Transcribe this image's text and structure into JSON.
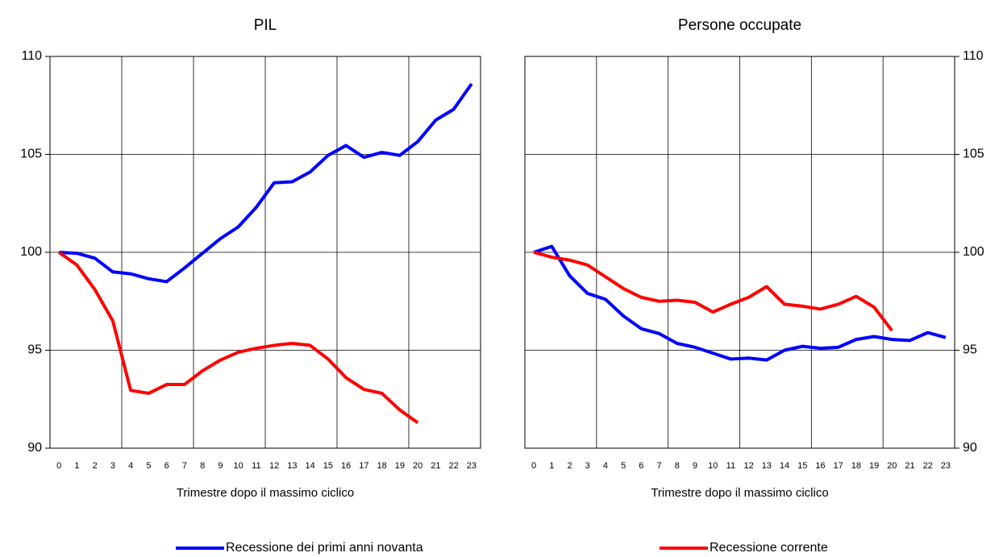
{
  "chart_data": [
    {
      "type": "line",
      "title": "PIL",
      "x_label": "Trimestre dopo il massimo ciclico",
      "categories": [
        "0",
        "1",
        "2",
        "3",
        "4",
        "5",
        "6",
        "7",
        "8",
        "9",
        "10",
        "11",
        "12",
        "13",
        "14",
        "15",
        "16",
        "17",
        "18",
        "19",
        "20",
        "21",
        "22",
        "23"
      ],
      "series": [
        {
          "name": "Recessione dei primi anni novanta",
          "color": "#0000ff",
          "values": [
            100,
            99.95,
            99.7,
            99.0,
            98.9,
            98.65,
            98.5,
            99.2,
            99.95,
            100.7,
            101.3,
            102.3,
            103.55,
            103.6,
            104.1,
            104.95,
            105.45,
            104.85,
            105.1,
            104.95,
            105.65,
            106.75,
            107.3,
            108.6
          ]
        },
        {
          "name": "Recessione corrente",
          "color": "#ff0000",
          "values": [
            100,
            99.35,
            98.1,
            96.5,
            92.95,
            92.8,
            93.25,
            93.25,
            93.95,
            94.5,
            94.9,
            95.1,
            95.25,
            95.35,
            95.25,
            94.55,
            93.6,
            93.0,
            92.8,
            91.95,
            91.3,
            null,
            null,
            null
          ]
        }
      ],
      "ylim": [
        90,
        110
      ],
      "yticks": [
        90,
        95,
        100,
        105,
        110
      ],
      "y_axis_side": "left",
      "grid": true
    },
    {
      "type": "line",
      "title": "Persone occupate",
      "x_label": "Trimestre dopo il massimo ciclico",
      "categories": [
        "0",
        "1",
        "2",
        "3",
        "4",
        "5",
        "6",
        "7",
        "8",
        "9",
        "10",
        "11",
        "12",
        "13",
        "14",
        "15",
        "16",
        "17",
        "18",
        "19",
        "20",
        "21",
        "22",
        "23"
      ],
      "series": [
        {
          "name": "Recessione dei primi anni novanta",
          "color": "#0000ff",
          "values": [
            100,
            100.3,
            98.8,
            97.9,
            97.6,
            96.75,
            96.1,
            95.85,
            95.35,
            95.15,
            94.85,
            94.55,
            94.6,
            94.5,
            95.0,
            95.2,
            95.1,
            95.15,
            95.55,
            95.7,
            95.55,
            95.5,
            95.9,
            95.65
          ]
        },
        {
          "name": "Recessione corrente",
          "color": "#ff0000",
          "values": [
            100,
            99.75,
            99.6,
            99.35,
            98.75,
            98.15,
            97.7,
            97.5,
            97.55,
            97.45,
            96.95,
            97.35,
            97.7,
            98.25,
            97.35,
            97.25,
            97.1,
            97.35,
            97.75,
            97.2,
            96.0,
            null,
            null,
            null
          ]
        }
      ],
      "ylim": [
        90,
        110
      ],
      "yticks": [
        90,
        95,
        100,
        105,
        110
      ],
      "y_axis_side": "right",
      "grid": true
    }
  ]
}
